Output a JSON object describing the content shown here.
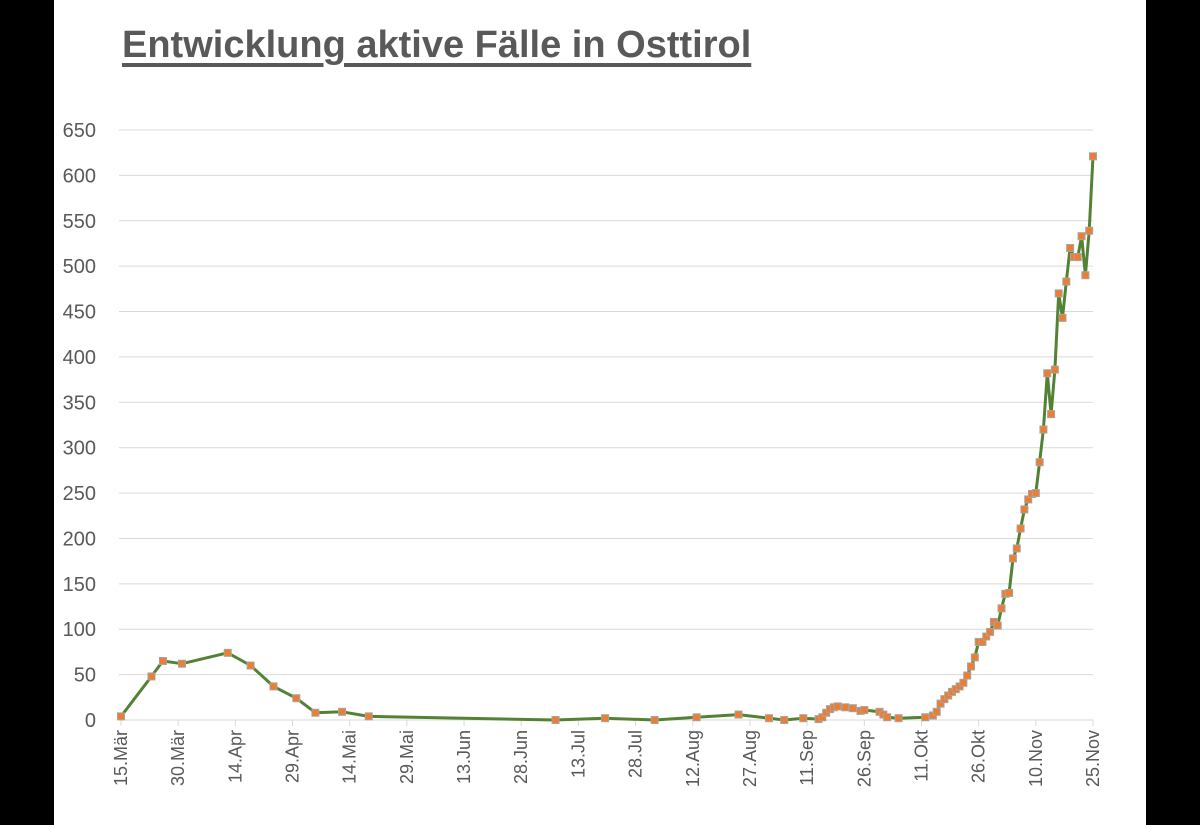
{
  "title": "Entwicklung aktive Fälle in Osttirol",
  "colors": {
    "line": "#548235",
    "marker_fill": "#ED7D31",
    "marker_stroke": "#A5A5A5",
    "grid": "#D9D9D9",
    "text": "#595959",
    "background": "#FFFFFF",
    "frame": "#000000"
  },
  "chart_data": {
    "type": "line",
    "title": "Entwicklung aktive Fälle in Osttirol",
    "xlabel": "",
    "ylabel": "",
    "ylim": [
      0,
      650
    ],
    "y_ticks": [
      0,
      50,
      100,
      150,
      200,
      250,
      300,
      350,
      400,
      450,
      500,
      550,
      600,
      650
    ],
    "x_tick_labels": [
      "15.Mär",
      "30.Mär",
      "14.Apr",
      "29.Apr",
      "14.Mai",
      "29.Mai",
      "13.Jun",
      "28.Jun",
      "13.Jul",
      "28.Jul",
      "12.Aug",
      "27.Aug",
      "11.Sep",
      "26.Sep",
      "11.Okt",
      "26.Okt",
      "10.Nov",
      "25.Nov"
    ],
    "x_tick_interval_days": 15,
    "x_start": "15.Mär",
    "x_end": "25.Nov",
    "grid": true,
    "legend": "none",
    "series": [
      {
        "name": "Aktive Fälle",
        "x_day_offset": [
          0,
          8,
          11,
          16,
          28,
          34,
          40,
          46,
          51,
          58,
          65,
          114,
          127,
          140,
          151,
          162,
          170,
          174,
          179,
          183,
          184,
          185,
          186,
          187,
          188,
          190,
          192,
          194,
          195,
          199,
          200,
          201,
          204,
          211,
          213,
          214,
          215,
          216,
          217,
          218,
          219,
          220,
          221,
          222,
          223,
          224,
          225,
          226,
          227,
          228,
          229,
          230,
          231,
          232,
          233,
          234,
          235,
          236,
          237,
          238,
          239,
          240,
          241,
          242,
          243,
          244,
          245,
          246,
          247,
          248,
          249,
          250,
          251,
          252,
          253,
          254,
          255
        ],
        "values": [
          4,
          48,
          65,
          62,
          74,
          60,
          37,
          24,
          8,
          9,
          4,
          0,
          2,
          0,
          3,
          6,
          2,
          0,
          2,
          1,
          3,
          8,
          12,
          14,
          15,
          14,
          13,
          10,
          11,
          9,
          6,
          3,
          2,
          3,
          5,
          9,
          18,
          23,
          27,
          31,
          34,
          37,
          41,
          49,
          59,
          69,
          86,
          86,
          92,
          97,
          108,
          104,
          123,
          139,
          140,
          178,
          189,
          211,
          232,
          243,
          249,
          250,
          284,
          320,
          382,
          337,
          386,
          470,
          443,
          483,
          520,
          510,
          510,
          533,
          490,
          539,
          621
        ]
      }
    ]
  }
}
